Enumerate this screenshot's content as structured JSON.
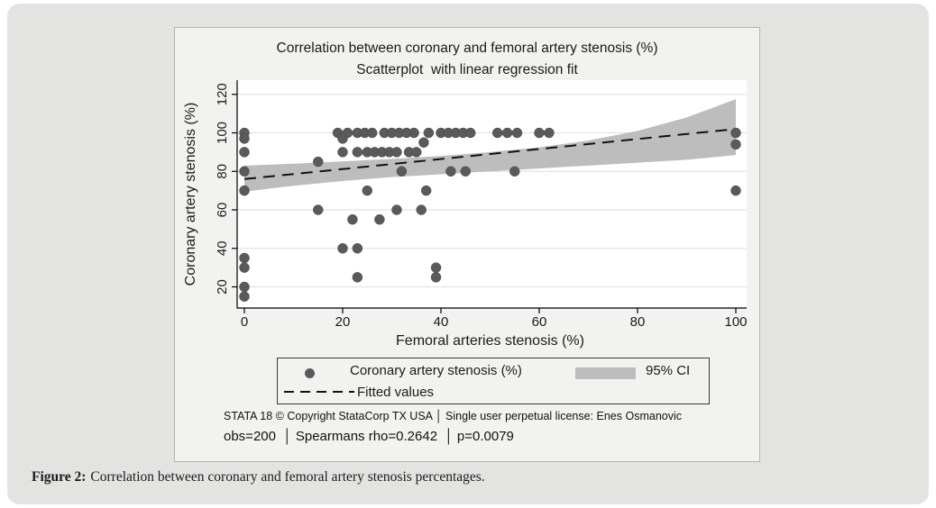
{
  "chart_data": {
    "type": "scatter",
    "title": "Correlation between coronary and femoral artery stenosis (%)",
    "subtitle": "Scatterplot  with linear regression fit",
    "xlabel": "Femoral arteries stenosis (%)",
    "ylabel": "Coronary artery stenosis (%)",
    "x_ticks": [
      0,
      20,
      40,
      60,
      80,
      100
    ],
    "y_ticks": [
      20,
      40,
      60,
      80,
      100,
      120
    ],
    "xlim": [
      -1.5,
      102
    ],
    "ylim": [
      9,
      122
    ],
    "grid": "horizontal",
    "legend_position": "bottom-box",
    "points": [
      [
        0,
        100
      ],
      [
        0,
        97
      ],
      [
        0,
        90
      ],
      [
        0,
        80
      ],
      [
        0,
        70
      ],
      [
        0,
        35
      ],
      [
        0,
        30
      ],
      [
        0,
        20
      ],
      [
        0,
        15
      ],
      [
        15,
        85
      ],
      [
        15,
        60
      ],
      [
        19,
        100
      ],
      [
        21,
        100
      ],
      [
        20,
        97
      ],
      [
        20,
        90
      ],
      [
        20,
        40
      ],
      [
        22,
        55
      ],
      [
        23,
        100
      ],
      [
        23,
        90
      ],
      [
        23,
        40
      ],
      [
        23,
        25
      ],
      [
        24.5,
        100
      ],
      [
        25,
        90
      ],
      [
        25,
        70
      ],
      [
        26,
        100
      ],
      [
        26.5,
        90
      ],
      [
        27.5,
        55
      ],
      [
        28.5,
        100
      ],
      [
        28,
        90
      ],
      [
        30,
        100
      ],
      [
        29.5,
        90
      ],
      [
        31.5,
        100
      ],
      [
        31,
        90
      ],
      [
        31,
        60
      ],
      [
        32,
        80
      ],
      [
        33,
        100
      ],
      [
        33.5,
        90
      ],
      [
        34.5,
        100
      ],
      [
        35,
        90
      ],
      [
        36.5,
        95
      ],
      [
        36,
        60
      ],
      [
        37,
        70
      ],
      [
        37.5,
        100
      ],
      [
        39,
        30
      ],
      [
        39,
        25
      ],
      [
        40,
        100
      ],
      [
        41.5,
        100
      ],
      [
        43,
        100
      ],
      [
        44.5,
        100
      ],
      [
        46,
        100
      ],
      [
        42,
        80
      ],
      [
        45,
        80
      ],
      [
        51.5,
        100
      ],
      [
        53.5,
        100
      ],
      [
        55.5,
        100
      ],
      [
        55,
        80
      ],
      [
        60,
        100
      ],
      [
        62,
        100
      ],
      [
        100,
        100
      ],
      [
        100,
        94
      ],
      [
        100,
        70
      ]
    ],
    "fit_line": {
      "x": [
        0,
        100
      ],
      "y": [
        76,
        102
      ]
    },
    "ci_band": {
      "x": [
        0,
        10,
        20,
        30,
        40,
        50,
        60,
        70,
        80,
        90,
        100
      ],
      "lower": [
        69.5,
        72.5,
        75,
        77,
        78.5,
        80,
        81.5,
        83,
        84.5,
        86,
        88.5
      ],
      "upper": [
        83,
        84,
        85.2,
        86.5,
        88,
        90,
        92.5,
        96,
        101,
        108,
        117.5
      ]
    },
    "colors": {
      "dot": "#5a5a5a",
      "band": "#bdbdbd",
      "fit": "#111111",
      "grid": "#dedede",
      "axis": "#000000",
      "panel_bg": "#f2f2f0",
      "plot_bg": "#ffffff",
      "card_bg": "#e3e3e2"
    }
  },
  "legend": {
    "items": [
      {
        "marker": "dot",
        "label": "Coronary artery stenosis (%)"
      },
      {
        "marker": "band",
        "label": "95% CI"
      },
      {
        "marker": "dash",
        "label": "Fitted values"
      }
    ]
  },
  "footer": {
    "license_line": "STATA 18 © Copyright StataCorp TX USA │ Single user perpetual license: Enes Osmanovic",
    "stats_line": "obs=200  │ Spearmans rho=0.2642  │ p=0.0079"
  },
  "caption": {
    "label": "Figure 2:",
    "text": "Correlation between coronary and femoral artery stenosis percentages."
  }
}
